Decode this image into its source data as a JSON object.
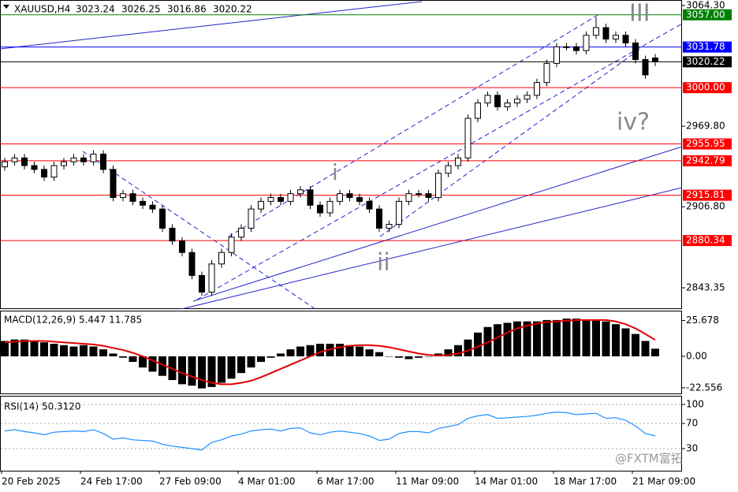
{
  "chart_data": [
    {
      "type": "candlestick",
      "title": "XAUUSD,H4",
      "categories": [
        "20 Feb 2025",
        null,
        null,
        null,
        null,
        null,
        null,
        null,
        "24 Feb 17:00",
        null,
        null,
        null,
        null,
        null,
        null,
        null,
        "27 Feb 09:00",
        null,
        null,
        null,
        null,
        null,
        null,
        null,
        "4 Mar 01:00",
        null,
        null,
        null,
        null,
        null,
        null,
        null,
        "6 Mar 17:00",
        null,
        null,
        null,
        null,
        null,
        null,
        null,
        "11 Mar 09:00",
        null,
        null,
        null,
        null,
        null,
        null,
        null,
        "14 Mar 01:00",
        null,
        null,
        null,
        null,
        null,
        null,
        null,
        "18 Mar 17:00",
        null,
        null,
        null,
        null,
        null,
        null,
        null,
        "21 Mar 09:00",
        null,
        null
      ],
      "open": [
        2938,
        2942,
        2945,
        2939,
        2936,
        2930,
        2939,
        2942,
        2945,
        2942,
        2948,
        2936,
        2914,
        2917,
        2911,
        2908,
        2905,
        2890,
        2880,
        2871,
        2853,
        2840,
        2862,
        2871,
        2883,
        2890,
        2905,
        2911,
        2914,
        2911,
        2917,
        2920,
        2908,
        2902,
        2911,
        2917,
        2914,
        2911,
        2905,
        2890,
        2893,
        2911,
        2917,
        2917,
        2914,
        2933,
        2939,
        2945,
        2976,
        2988,
        2994,
        2985,
        2988,
        2991,
        2994,
        3004,
        3019,
        3032,
        3032,
        3029,
        3041,
        3047,
        3038,
        3041,
        3035,
        3022,
        3023.24
      ],
      "high": [
        2945,
        2948,
        2948,
        2942,
        2939,
        2942,
        2945,
        2948,
        2948,
        2951,
        2951,
        2939,
        2920,
        2920,
        2914,
        2911,
        2908,
        2893,
        2883,
        2874,
        2856,
        2865,
        2874,
        2886,
        2893,
        2908,
        2914,
        2917,
        2917,
        2920,
        2923,
        2923,
        2911,
        2914,
        2920,
        2920,
        2917,
        2914,
        2908,
        2896,
        2914,
        2920,
        2920,
        2920,
        2936,
        2942,
        2948,
        2979,
        2991,
        2997,
        2997,
        2991,
        2994,
        2997,
        3007,
        3022,
        3035,
        3035,
        3035,
        3044,
        3055,
        3050,
        3044,
        3044,
        3038,
        3025,
        3026.25
      ],
      "low": [
        2935,
        2939,
        2936,
        2933,
        2927,
        2927,
        2936,
        2939,
        2939,
        2939,
        2933,
        2911,
        2911,
        2908,
        2905,
        2902,
        2887,
        2877,
        2868,
        2850,
        2837,
        2837,
        2859,
        2868,
        2880,
        2887,
        2902,
        2908,
        2908,
        2908,
        2914,
        2905,
        2899,
        2899,
        2908,
        2911,
        2908,
        2902,
        2887,
        2887,
        2890,
        2908,
        2914,
        2911,
        2911,
        2930,
        2936,
        2942,
        2973,
        2985,
        2982,
        2982,
        2985,
        2988,
        2991,
        3001,
        3016,
        3029,
        3026,
        3026,
        3038,
        3035,
        3035,
        3032,
        3019,
        3007,
        3016.86
      ],
      "close": [
        2942,
        2945,
        2939,
        2936,
        2930,
        2939,
        2942,
        2945,
        2942,
        2948,
        2936,
        2914,
        2917,
        2911,
        2908,
        2905,
        2890,
        2880,
        2871,
        2853,
        2840,
        2862,
        2871,
        2883,
        2890,
        2905,
        2911,
        2914,
        2911,
        2917,
        2920,
        2908,
        2902,
        2911,
        2917,
        2914,
        2911,
        2905,
        2890,
        2893,
        2911,
        2917,
        2917,
        2914,
        2933,
        2939,
        2945,
        2976,
        2988,
        2994,
        2985,
        2988,
        2991,
        2994,
        3004,
        3019,
        3032,
        3032,
        3029,
        3041,
        3047,
        3038,
        3041,
        3035,
        3022,
        3010,
        3020.22
      ],
      "ylim": [
        2826.7,
        3068.6
      ],
      "yticks": [
        {
          "value": 3064.3,
          "label": "3064.30"
        },
        {
          "value": 2969.8,
          "label": "2969.80"
        },
        {
          "value": 2906.8,
          "label": "2906.80"
        },
        {
          "value": 2843.35,
          "label": "2843.35"
        }
      ],
      "levels": [
        {
          "value": 3057,
          "label": "3057.00",
          "color": "#008000"
        },
        {
          "value": 3031.78,
          "label": "3031.78",
          "color": "#0000ff"
        },
        {
          "value": 3020.22,
          "label": "3020.22",
          "color": "#000000"
        },
        {
          "value": 3000,
          "label": "3000.00",
          "color": "#ff0000"
        },
        {
          "value": 2955.95,
          "label": "2955.95",
          "color": "#ff0000"
        },
        {
          "value": 2942.79,
          "label": "2942.79",
          "color": "#ff0000"
        },
        {
          "value": 2915.81,
          "label": "2915.81",
          "color": "#ff0000"
        },
        {
          "value": 2880.34,
          "label": "2880.34",
          "color": "#ff0000"
        }
      ],
      "annotations": [
        "III",
        "iv?",
        "i",
        "ii"
      ],
      "watermark": "@FXTM富拓"
    },
    {
      "type": "macd",
      "title": "MACD(12,26,9) 5.447 11.785",
      "histogram": [
        11,
        12,
        12,
        11,
        10,
        9,
        8,
        7,
        8,
        7,
        5,
        2,
        -1,
        -4,
        -8,
        -11,
        -14,
        -17,
        -20,
        -21,
        -23,
        -22,
        -19,
        -16,
        -12,
        -8,
        -4,
        -1,
        2,
        5,
        7,
        8,
        9,
        9,
        9,
        8,
        7,
        5,
        3,
        0,
        -1,
        -2,
        -1,
        0,
        2,
        5,
        8,
        12,
        17,
        21,
        23,
        24,
        25,
        25,
        25,
        26,
        26,
        27,
        27,
        26,
        26,
        25,
        23,
        20,
        16,
        11,
        5.447
      ],
      "signal": [
        10,
        10.5,
        11,
        11,
        11,
        10.5,
        10,
        9.5,
        9,
        8.5,
        7.5,
        6,
        4.5,
        2.5,
        0,
        -3,
        -6,
        -9,
        -12,
        -14.5,
        -17,
        -19,
        -20,
        -20,
        -19,
        -17.5,
        -15,
        -12,
        -9,
        -6,
        -3,
        0,
        3,
        5,
        6.5,
        7.5,
        8,
        8,
        7.5,
        6.5,
        5,
        3.5,
        2,
        1,
        0.5,
        1,
        2,
        4,
        7,
        10,
        13.5,
        17,
        20,
        22,
        23.5,
        24.5,
        25,
        25.5,
        26,
        26,
        26,
        26,
        25,
        23,
        20,
        16,
        11.785
      ],
      "color": "#000000",
      "signal_color": "#e00000",
      "ylim": [
        -26.6,
        32.15
      ],
      "yticks": [
        25.678,
        {
          "value": 0,
          "label": "0.00"
        },
        -22.556
      ]
    },
    {
      "type": "line",
      "title": "RSI(14) 50.3120",
      "values": [
        58,
        60,
        57,
        55,
        52,
        56,
        57,
        58,
        57,
        60,
        54,
        45,
        47,
        44,
        43,
        42,
        37,
        34,
        32,
        30,
        28,
        40,
        44,
        50,
        53,
        58,
        60,
        61,
        58,
        62,
        63,
        55,
        52,
        56,
        58,
        56,
        54,
        50,
        43,
        45,
        54,
        57,
        57,
        55,
        62,
        65,
        68,
        78,
        82,
        84,
        78,
        79,
        80,
        81,
        83,
        86,
        88,
        87,
        84,
        85,
        86,
        78,
        79,
        75,
        66,
        54,
        50.312
      ],
      "color": "#1e90ff",
      "ylim": [
        -5,
        112.5
      ],
      "yticks": [
        100,
        70,
        30
      ]
    }
  ]
}
